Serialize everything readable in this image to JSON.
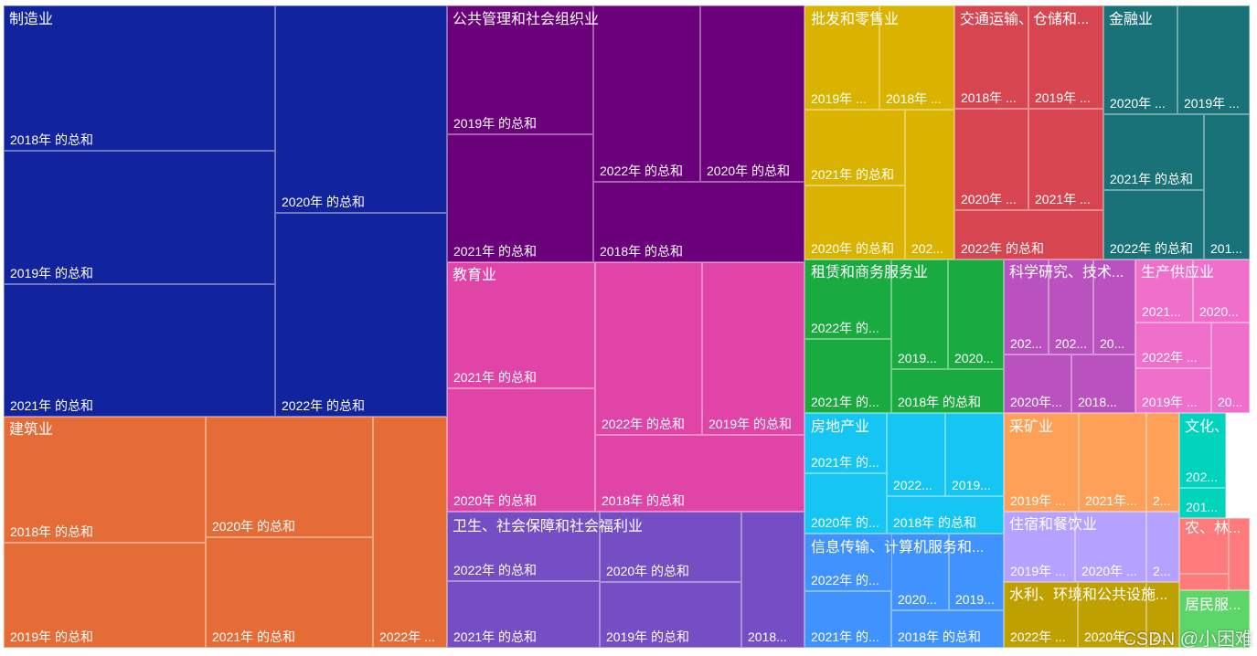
{
  "chart_data": {
    "type": "treemap",
    "groups": [
      {
        "name": "制造业",
        "color": "#12239E",
        "cells": [
          {
            "label": "2018年 的总和"
          },
          {
            "label": "2019年 的总和"
          },
          {
            "label": "2021年 的总和"
          },
          {
            "label": "2020年 的总和"
          },
          {
            "label": "2022年 的总和"
          }
        ]
      },
      {
        "name": "建筑业",
        "color": "#E66C37",
        "cells": [
          {
            "label": "2018年 的总和"
          },
          {
            "label": "2019年 的总和"
          },
          {
            "label": "2020年 的总和"
          },
          {
            "label": "2021年 的总和"
          },
          {
            "label": "2022年 ..."
          }
        ]
      },
      {
        "name": "公共管理和社会组织业",
        "color": "#6B007B",
        "cells": [
          {
            "label": "2019年 的总和"
          },
          {
            "label": "2021年 的总和"
          },
          {
            "label": "2022年 的总和"
          },
          {
            "label": "2020年 的总和"
          },
          {
            "label": "2018年 的总和"
          }
        ]
      },
      {
        "name": "教育业",
        "color": "#E044A7",
        "cells": [
          {
            "label": "2021年 的总和"
          },
          {
            "label": "2020年 的总和"
          },
          {
            "label": "2022年 的总和"
          },
          {
            "label": "2019年 的总和"
          },
          {
            "label": "2018年 的总和"
          }
        ]
      },
      {
        "name": "卫生、社会保障和社会福利业",
        "color": "#744EC2",
        "cells": [
          {
            "label": "2022年 的总和"
          },
          {
            "label": "2021年 的总和"
          },
          {
            "label": "2020年 的总和"
          },
          {
            "label": "2019年 的总和"
          },
          {
            "label": "2018..."
          }
        ]
      },
      {
        "name": "批发和零售业",
        "color": "#D9B300",
        "cells": [
          {
            "label": "2019年 ..."
          },
          {
            "label": "2018年 ..."
          },
          {
            "label": "2021年 的总和"
          },
          {
            "label": "2020年 的总和"
          },
          {
            "label": "202..."
          }
        ]
      },
      {
        "name": "交通运输、仓储和...",
        "color": "#D64550",
        "cells": [
          {
            "label": "2018年 ..."
          },
          {
            "label": "2019年 ..."
          },
          {
            "label": "2020年 ..."
          },
          {
            "label": "2021年 ..."
          },
          {
            "label": "2022年 的总和"
          }
        ]
      },
      {
        "name": "金融业",
        "color": "#197278",
        "cells": [
          {
            "label": "2020年 ..."
          },
          {
            "label": "2019年 ..."
          },
          {
            "label": "2021年 的总和"
          },
          {
            "label": "2022年 的总和"
          },
          {
            "label": "201..."
          }
        ]
      },
      {
        "name": "租赁和商务服务业",
        "color": "#1AAB40",
        "cells": [
          {
            "label": "2022年 的..."
          },
          {
            "label": "2019..."
          },
          {
            "label": "2020..."
          },
          {
            "label": "2021年 的..."
          },
          {
            "label": "2018年 的总和"
          }
        ]
      },
      {
        "name": "科学研究、技术...",
        "color": "#B952BF",
        "cells": [
          {
            "label": "202..."
          },
          {
            "label": "202..."
          },
          {
            "label": "20..."
          },
          {
            "label": "2020年..."
          },
          {
            "label": "2018..."
          }
        ]
      },
      {
        "name": "生产供应业",
        "color": "#F06FCB",
        "cells": [
          {
            "label": "2021..."
          },
          {
            "label": "2020..."
          },
          {
            "label": "2022年 ..."
          },
          {
            "label": "2019年 ..."
          },
          {
            "label": "20..."
          }
        ]
      },
      {
        "name": "房地产业",
        "color": "#15C6F4",
        "cells": [
          {
            "label": "2021年 的..."
          },
          {
            "label": "2020年 的..."
          },
          {
            "label": "2022..."
          },
          {
            "label": "2019..."
          },
          {
            "label": "2018年 的总和"
          }
        ]
      },
      {
        "name": "信息传输、计算机服务和...",
        "color": "#4092FF",
        "cells": [
          {
            "label": "2022年 的..."
          },
          {
            "label": "2021年 的..."
          },
          {
            "label": "2020..."
          },
          {
            "label": "2019..."
          },
          {
            "label": "2018年 的总和"
          }
        ]
      },
      {
        "name": "采矿业",
        "color": "#FFA058",
        "cells": [
          {
            "label": "2019年 ..."
          },
          {
            "label": "2021年..."
          },
          {
            "label": "2..."
          }
        ]
      },
      {
        "name": "住宿和餐饮业",
        "color": "#B5A1FF",
        "cells": [
          {
            "label": "2019年 ..."
          },
          {
            "label": "2020年 ..."
          },
          {
            "label": "2..."
          }
        ]
      },
      {
        "name": "水利、环境和公共设施...",
        "color": "#BEA000",
        "cells": [
          {
            "label": "2022年 ..."
          },
          {
            "label": "2020年..."
          },
          {
            "label": "2..."
          }
        ]
      },
      {
        "name": "文化、...",
        "color": "#00D4BC",
        "cells": [
          {
            "label": "202..."
          },
          {
            "label": "201..."
          }
        ]
      },
      {
        "name": "农、林...",
        "color": "#FF7A7A",
        "cells": [
          {
            "label": ""
          },
          {
            "label": ""
          },
          {
            "label": ""
          }
        ]
      },
      {
        "name": "居民服...",
        "color": "#5BD667",
        "cells": [
          {
            "label": ""
          }
        ]
      }
    ]
  },
  "watermark": "CSDN @小困难"
}
